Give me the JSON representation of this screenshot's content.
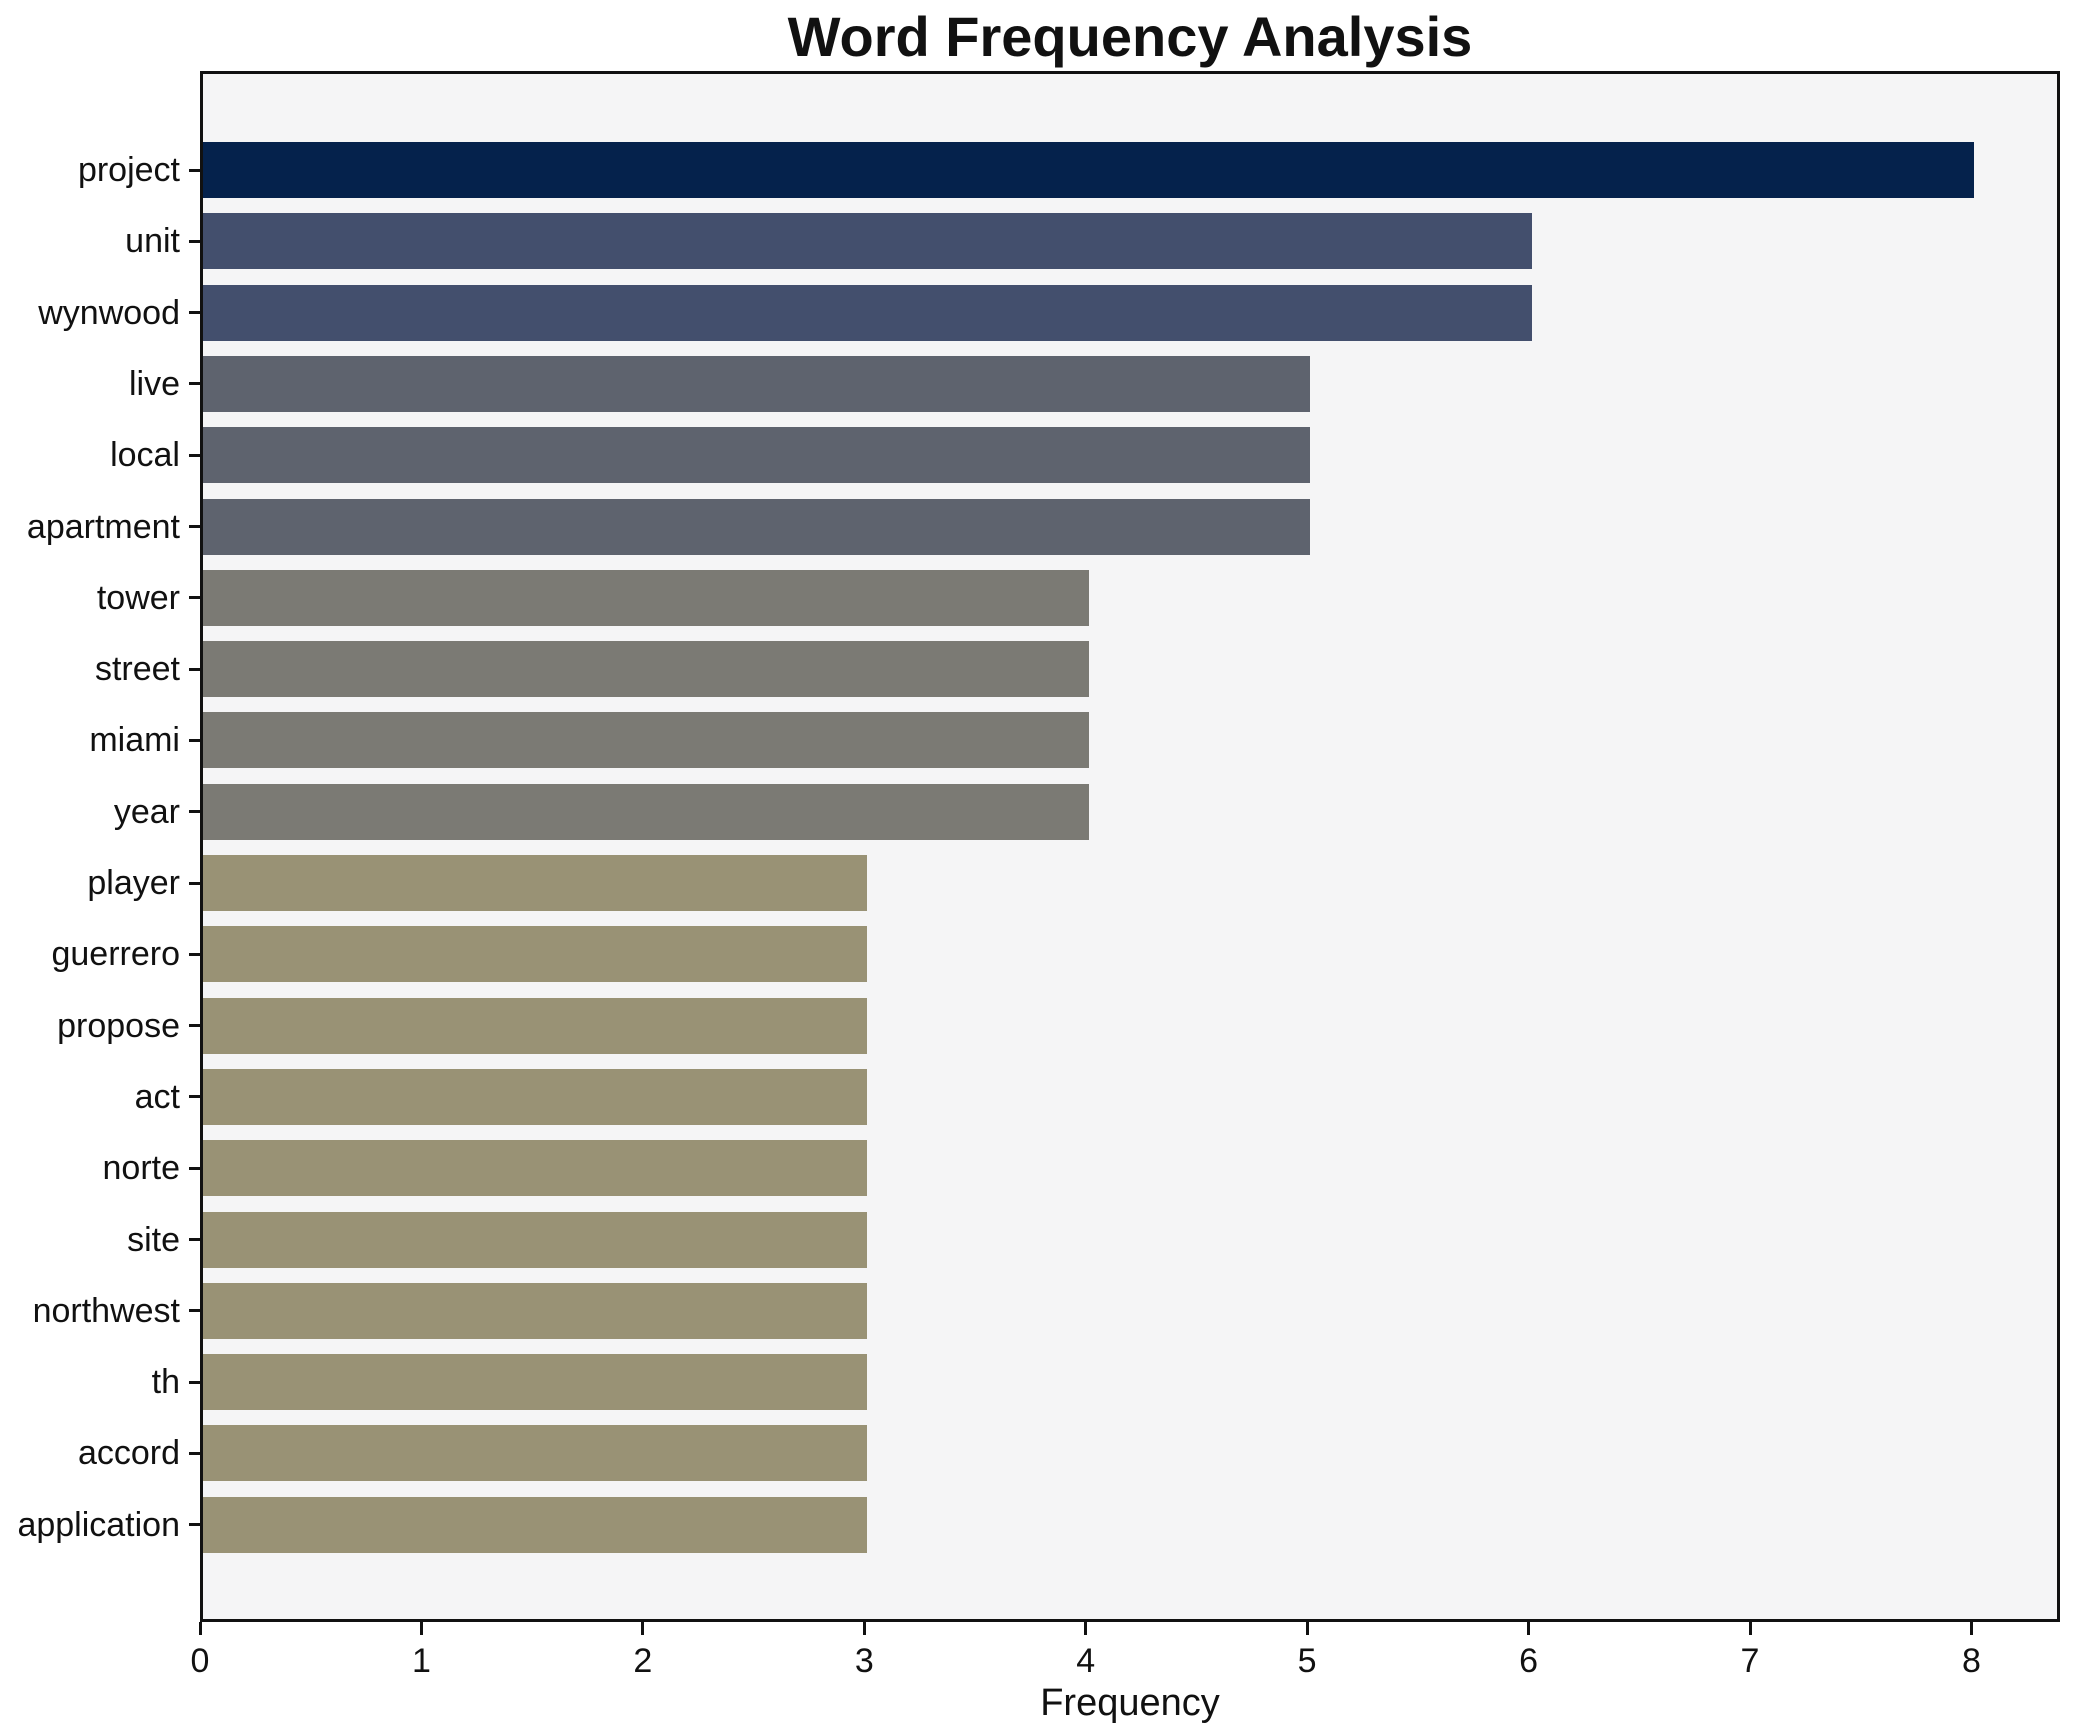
{
  "title": "Word Frequency Analysis",
  "chart_data": {
    "type": "bar",
    "orientation": "horizontal",
    "title": "Word Frequency Analysis",
    "xlabel": "Frequency",
    "ylabel": "",
    "categories": [
      "project",
      "unit",
      "wynwood",
      "live",
      "local",
      "apartment",
      "tower",
      "street",
      "miami",
      "year",
      "player",
      "guerrero",
      "propose",
      "act",
      "norte",
      "site",
      "northwest",
      "th",
      "accord",
      "application"
    ],
    "values": [
      8,
      6,
      6,
      5,
      5,
      5,
      4,
      4,
      4,
      4,
      3,
      3,
      3,
      3,
      3,
      3,
      3,
      3,
      3,
      3
    ],
    "bar_colors": [
      "#05224c",
      "#434f6d",
      "#434f6d",
      "#5e636e",
      "#5e636e",
      "#5e636e",
      "#7b7a74",
      "#7b7a74",
      "#7b7a74",
      "#7b7a74",
      "#999275",
      "#999275",
      "#999275",
      "#999275",
      "#999275",
      "#999275",
      "#999275",
      "#999275",
      "#999275",
      "#999275"
    ],
    "xticks": [
      0,
      1,
      2,
      3,
      4,
      5,
      6,
      7,
      8
    ],
    "xlim": [
      0,
      8.4
    ],
    "grid": false,
    "legend": false,
    "plot_background": "#f5f5f6",
    "figure_background": "#ffffff",
    "spine_color": "#111111"
  }
}
